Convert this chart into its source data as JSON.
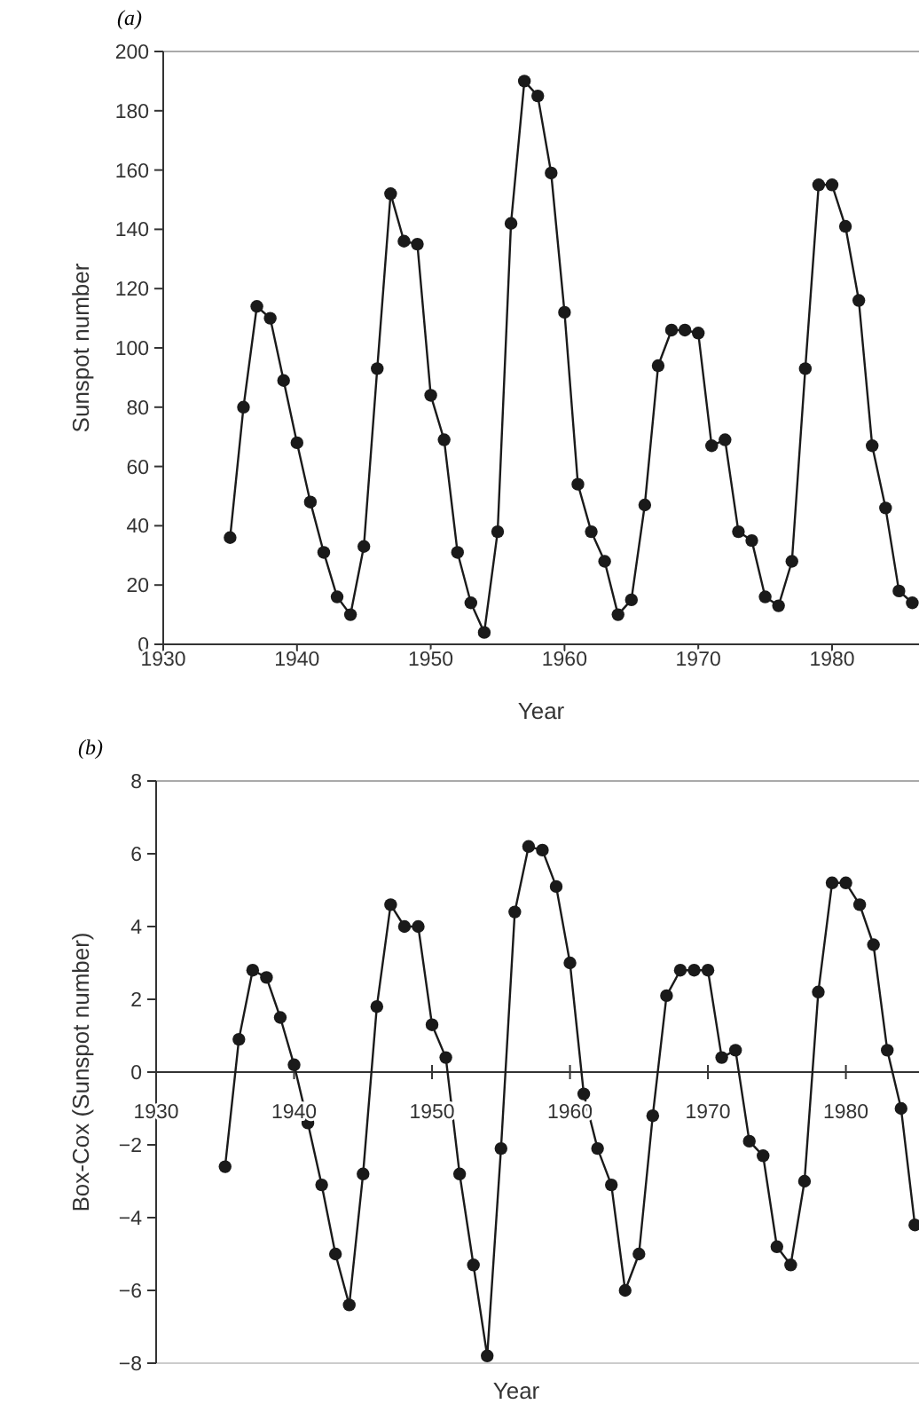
{
  "chart_data": [
    {
      "type": "line",
      "title": "(a)",
      "xlabel": "Year",
      "ylabel": "Sunspot number",
      "xlim": [
        1930,
        1986.5
      ],
      "xticks": [
        1930,
        1940,
        1950,
        1960,
        1970,
        1980
      ],
      "ylim": [
        0,
        200
      ],
      "yticks": [
        0,
        20,
        40,
        60,
        80,
        100,
        120,
        140,
        160,
        180,
        200
      ],
      "grid": false,
      "marker": "circle",
      "line_style": "solid",
      "x": [
        1935,
        1936,
        1937,
        1938,
        1939,
        1940,
        1941,
        1942,
        1943,
        1944,
        1945,
        1946,
        1947,
        1948,
        1949,
        1950,
        1951,
        1952,
        1953,
        1954,
        1955,
        1956,
        1957,
        1958,
        1959,
        1960,
        1961,
        1962,
        1963,
        1964,
        1965,
        1966,
        1967,
        1968,
        1969,
        1970,
        1971,
        1972,
        1973,
        1974,
        1975,
        1976,
        1977,
        1978,
        1979,
        1980,
        1981,
        1982,
        1983,
        1984,
        1985,
        1986
      ],
      "series": [
        {
          "color": "#1a1a1a",
          "values": [
            36,
            80,
            114,
            110,
            89,
            68,
            48,
            31,
            16,
            10,
            33,
            93,
            152,
            136,
            135,
            84,
            69,
            31,
            14,
            4,
            38,
            142,
            190,
            185,
            159,
            112,
            54,
            38,
            28,
            10,
            15,
            47,
            94,
            106,
            106,
            105,
            67,
            69,
            38,
            35,
            16,
            13,
            28,
            93,
            155,
            155,
            141,
            116,
            67,
            46,
            18,
            14
          ]
        }
      ]
    },
    {
      "type": "line",
      "title": "(b)",
      "xlabel": "Year",
      "ylabel": "Box-Cox (Sunspot number)",
      "xlim": [
        1930,
        1985.3
      ],
      "xticks": [
        1930,
        1940,
        1950,
        1960,
        1970,
        1980
      ],
      "ylim": [
        -8,
        8
      ],
      "yticks": [
        -8,
        -6,
        -4,
        -2,
        0,
        2,
        4,
        6,
        8
      ],
      "grid": false,
      "marker": "circle",
      "line_style": "solid",
      "x": [
        1935,
        1936,
        1937,
        1938,
        1939,
        1940,
        1941,
        1942,
        1943,
        1944,
        1945,
        1946,
        1947,
        1948,
        1949,
        1950,
        1951,
        1952,
        1953,
        1954,
        1955,
        1956,
        1957,
        1958,
        1959,
        1960,
        1961,
        1962,
        1963,
        1964,
        1965,
        1966,
        1967,
        1968,
        1969,
        1970,
        1971,
        1972,
        1973,
        1974,
        1975,
        1976,
        1977,
        1978,
        1979,
        1980,
        1981,
        1982,
        1983,
        1984,
        1985
      ],
      "series": [
        {
          "color": "#1a1a1a",
          "values": [
            -2.6,
            0.9,
            2.8,
            2.6,
            1.5,
            0.2,
            -1.4,
            -3.1,
            -5.0,
            -6.4,
            -2.8,
            1.8,
            4.6,
            4.0,
            4.0,
            1.3,
            0.4,
            -2.8,
            -5.3,
            -7.8,
            -2.1,
            4.4,
            6.2,
            6.1,
            5.1,
            3.0,
            -0.6,
            -2.1,
            -3.1,
            -6.0,
            -5.0,
            -1.2,
            2.1,
            2.8,
            2.8,
            2.8,
            0.4,
            0.6,
            -1.9,
            -2.3,
            -4.8,
            -5.3,
            -3.0,
            2.2,
            5.2,
            5.2,
            4.6,
            3.5,
            0.6,
            -1.0,
            -4.2
          ]
        }
      ]
    }
  ]
}
